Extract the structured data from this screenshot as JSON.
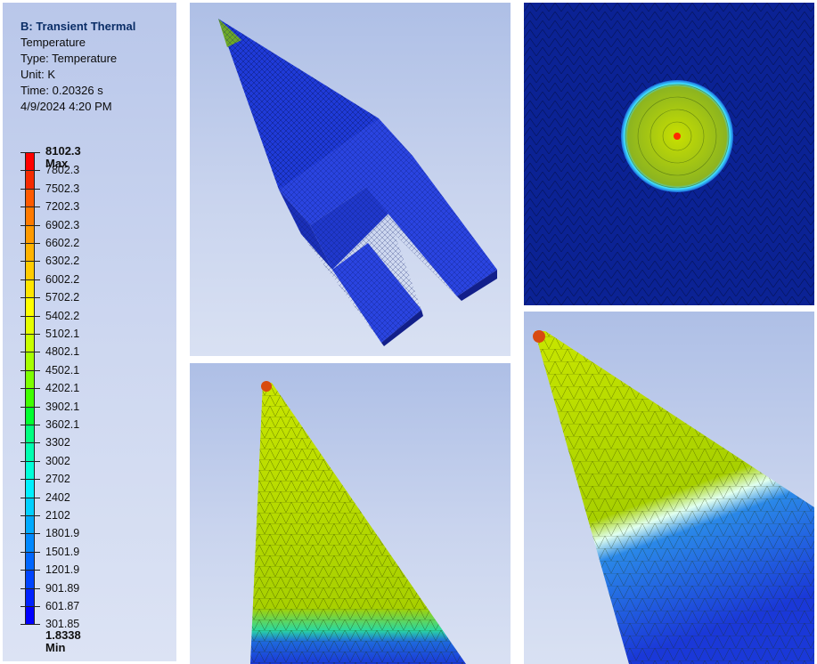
{
  "legend": {
    "title": "B: Transient Thermal",
    "lines": [
      "Temperature",
      "Type: Temperature",
      "Unit: K",
      "Time: 0.20326 s",
      "4/9/2024 4:20 PM"
    ],
    "max_label": "8102.3 Max",
    "min_label": "1.8338 Min",
    "values": [
      "7802.3",
      "7502.3",
      "7202.3",
      "6902.3",
      "6602.2",
      "6302.2",
      "6002.2",
      "5702.2",
      "5402.2",
      "5102.1",
      "4802.1",
      "4502.1",
      "4202.1",
      "3902.1",
      "3602.1",
      "3302",
      "3002",
      "2702",
      "2402",
      "2102",
      "1801.9",
      "1501.9",
      "1201.9",
      "901.89",
      "601.87",
      "301.85"
    ],
    "colors": [
      "#ff0000",
      "#f52a00",
      "#ff5a00",
      "#ff7a00",
      "#ff9a00",
      "#ffb300",
      "#ffcc00",
      "#ffe600",
      "#ffff00",
      "#e5ff00",
      "#c8ff00",
      "#a6ff00",
      "#7dff00",
      "#40ff00",
      "#00ff30",
      "#00ff80",
      "#00ffb0",
      "#00ffd8",
      "#00f0ff",
      "#00d0ff",
      "#00aaff",
      "#0088ff",
      "#0066ff",
      "#0044ff",
      "#0022ff",
      "#0000ff"
    ]
  },
  "views": {
    "isometric": "isometric-view",
    "front": "front-view",
    "tip_closeup_left": "tip-closeup-left",
    "tip_closeup_right": "tip-closeup-right"
  }
}
